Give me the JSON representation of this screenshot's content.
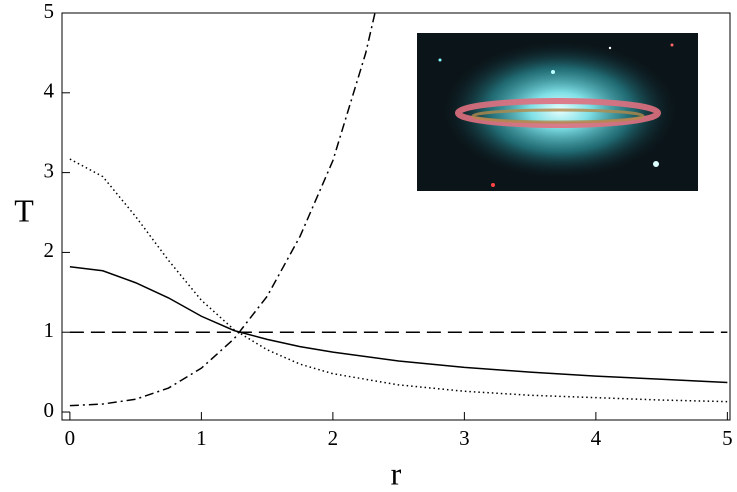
{
  "chart_data": {
    "type": "line",
    "xlabel": "r",
    "ylabel": "T",
    "xlim": [
      -0.06,
      5.02
    ],
    "ylim": [
      -0.1,
      5
    ],
    "xticks": [
      0,
      1,
      2,
      3,
      4,
      5
    ],
    "yticks": [
      0,
      1,
      2,
      3,
      4,
      5
    ],
    "series": [
      {
        "color": "#000000",
        "dash": "solid",
        "x": [
          0,
          0.25,
          0.5,
          0.75,
          1,
          1.25,
          1.5,
          1.75,
          2,
          2.5,
          3,
          3.5,
          4,
          4.5,
          5
        ],
        "values": [
          1.82,
          1.77,
          1.62,
          1.43,
          1.2,
          1.02,
          0.91,
          0.82,
          0.75,
          0.64,
          0.56,
          0.5,
          0.45,
          0.41,
          0.37
        ]
      },
      {
        "color": "#000000",
        "dash": "dotted",
        "x": [
          0,
          0.25,
          0.5,
          0.75,
          1,
          1.25,
          1.5,
          1.75,
          2,
          2.5,
          3,
          3.5,
          4,
          4.5,
          5
        ],
        "values": [
          3.17,
          2.95,
          2.45,
          1.9,
          1.4,
          1.03,
          0.78,
          0.6,
          0.48,
          0.34,
          0.26,
          0.21,
          0.18,
          0.15,
          0.13
        ]
      },
      {
        "color": "#000000",
        "dash": "dashdot",
        "x": [
          0,
          0.25,
          0.5,
          0.75,
          1,
          1.25,
          1.5,
          1.75,
          2,
          2.25,
          2.32
        ],
        "values": [
          0.08,
          0.1,
          0.16,
          0.3,
          0.55,
          0.92,
          1.45,
          2.2,
          3.15,
          4.5,
          5
        ]
      },
      {
        "color": "#000000",
        "dash": "dashed",
        "x": [
          0,
          5
        ],
        "values": [
          1,
          1
        ]
      }
    ]
  }
}
